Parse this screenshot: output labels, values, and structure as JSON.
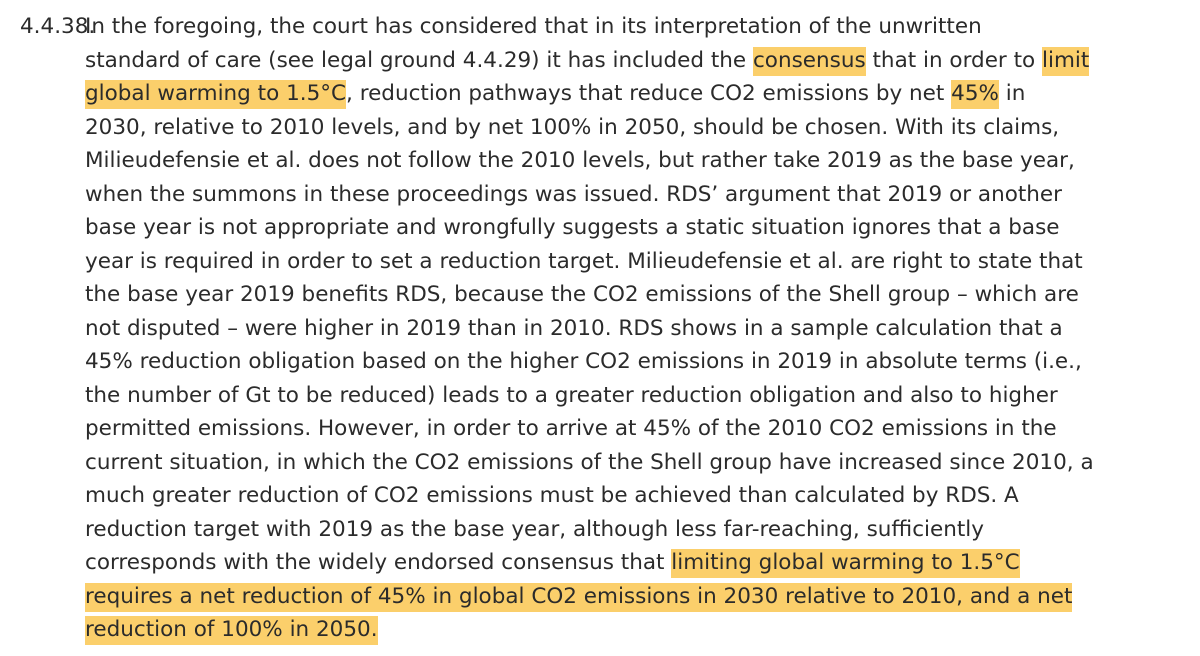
{
  "paragraph": {
    "number": "4.4.38.",
    "lines": [
      [
        {
          "text": "In the foregoing, the court has considered that in its interpretation of the unwritten",
          "hl": false
        }
      ],
      [
        {
          "text": "standard of care (see legal ground 4.4.29) it has included the ",
          "hl": false
        },
        {
          "text": "consensus",
          "hl": true
        },
        {
          "text": " that in order to ",
          "hl": false
        },
        {
          "text": "limit",
          "hl": true
        }
      ],
      [
        {
          "text": "global warming to 1.5°C",
          "hl": true
        },
        {
          "text": ", reduction pathways that reduce CO2 emissions by net ",
          "hl": false
        },
        {
          "text": "45%",
          "hl": true
        },
        {
          "text": " in",
          "hl": false
        }
      ],
      [
        {
          "text": "2030, relative to 2010 levels, and by net 100% in 2050, should be chosen. With its claims,",
          "hl": false
        }
      ],
      [
        {
          "text": "Milieudefensie et al. does not follow the 2010 levels, but rather take 2019 as the base year,",
          "hl": false
        }
      ],
      [
        {
          "text": "when the summons in these proceedings was issued. RDS’ argument that 2019 or another",
          "hl": false
        }
      ],
      [
        {
          "text": "base year is not appropriate and wrongfully suggests a static situation ignores that a base",
          "hl": false
        }
      ],
      [
        {
          "text": "year is required in order to set a reduction target. Milieudefensie et al. are right to state that",
          "hl": false
        }
      ],
      [
        {
          "text": "the base year 2019 benefits RDS, because the CO2 emissions of the Shell group – which are",
          "hl": false
        }
      ],
      [
        {
          "text": "not disputed – were higher in 2019 than in 2010. RDS shows in a sample calculation that a",
          "hl": false
        }
      ],
      [
        {
          "text": "45% reduction obligation based on the higher CO2 emissions in 2019 in absolute terms (i.e.,",
          "hl": false
        }
      ],
      [
        {
          "text": "the number of Gt to be reduced) leads to a greater reduction obligation and also to higher",
          "hl": false
        }
      ],
      [
        {
          "text": "permitted emissions. However, in order to arrive at 45% of the 2010 CO2 emissions in the",
          "hl": false
        }
      ],
      [
        {
          "text": "current situation, in which the CO2 emissions of the Shell group have increased since 2010, a",
          "hl": false
        }
      ],
      [
        {
          "text": "much greater reduction of CO2 emissions must be achieved than calculated by RDS. A",
          "hl": false
        }
      ],
      [
        {
          "text": "reduction target with 2019 as the base year, although less far-reaching, sufficiently",
          "hl": false
        }
      ],
      [
        {
          "text": "corresponds with the widely endorsed consensus that ",
          "hl": false
        },
        {
          "text": "limiting global warming to 1.5°C",
          "hl": true
        }
      ],
      [
        {
          "text": "requires a net reduction of 45% in global CO2 emissions in 2030 relative to 2010, and a net",
          "hl": true
        }
      ],
      [
        {
          "text": "reduction of 100% in 2050.",
          "hl": true
        }
      ]
    ]
  },
  "colors": {
    "text": "#2b2b2b",
    "highlight": "#fbcf6b",
    "background": "#ffffff"
  }
}
